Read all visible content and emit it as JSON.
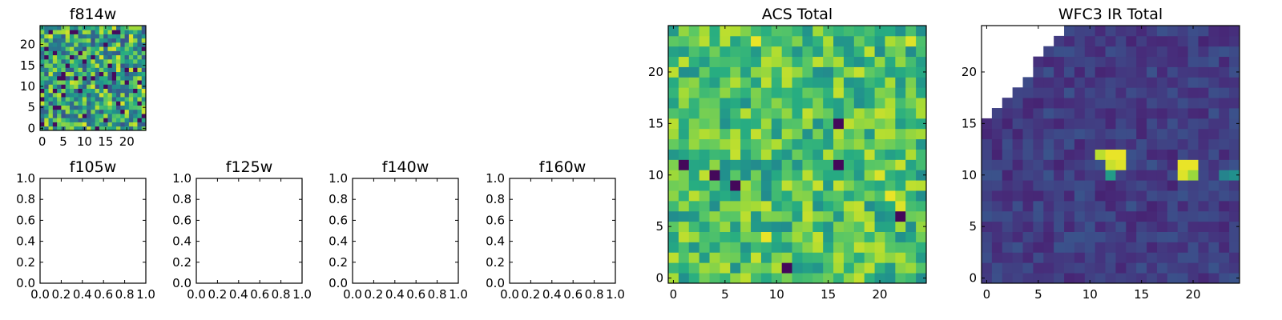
{
  "chart_data": [
    {
      "type": "heatmap",
      "title": "f814w",
      "grid": [
        25,
        25
      ],
      "xlim": [
        -0.5,
        24.5
      ],
      "ylim": [
        -0.5,
        24.5
      ],
      "xticks": [
        0,
        5,
        10,
        15,
        20
      ],
      "yticks": [
        0,
        5,
        10,
        15,
        20
      ],
      "colormap": "viridis",
      "seed": 814,
      "missing_top_left": false,
      "hot_spots": [
        {
          "x": 24,
          "y": 9,
          "value": 0.95
        },
        {
          "x": 23,
          "y": 10,
          "value": 0.95
        }
      ]
    },
    {
      "type": "empty",
      "title": "f105w",
      "xlim": [
        0,
        1
      ],
      "ylim": [
        0,
        1
      ],
      "xticks": [
        "0.0",
        "0.2",
        "0.4",
        "0.6",
        "0.8",
        "1.0"
      ],
      "yticks": [
        "0.0",
        "0.2",
        "0.4",
        "0.6",
        "0.8",
        "1.0"
      ]
    },
    {
      "type": "empty",
      "title": "f125w",
      "xlim": [
        0,
        1
      ],
      "ylim": [
        0,
        1
      ],
      "xticks": [
        "0.0",
        "0.2",
        "0.4",
        "0.6",
        "0.8",
        "1.0"
      ],
      "yticks": [
        "0.0",
        "0.2",
        "0.4",
        "0.6",
        "0.8",
        "1.0"
      ]
    },
    {
      "type": "empty",
      "title": "f140w",
      "xlim": [
        0,
        1
      ],
      "ylim": [
        0,
        1
      ],
      "xticks": [
        "0.0",
        "0.2",
        "0.4",
        "0.6",
        "0.8",
        "1.0"
      ],
      "yticks": [
        "0.0",
        "0.2",
        "0.4",
        "0.6",
        "0.8",
        "1.0"
      ]
    },
    {
      "type": "empty",
      "title": "f160w",
      "xlim": [
        0,
        1
      ],
      "ylim": [
        0,
        1
      ],
      "xticks": [
        "0.0",
        "0.2",
        "0.4",
        "0.6",
        "0.8",
        "1.0"
      ],
      "yticks": [
        "0.0",
        "0.2",
        "0.4",
        "0.6",
        "0.8",
        "1.0"
      ]
    },
    {
      "type": "heatmap",
      "title": "ACS Total",
      "grid": [
        25,
        25
      ],
      "xlim": [
        -0.5,
        24.5
      ],
      "ylim": [
        -0.5,
        24.5
      ],
      "xticks": [
        0,
        5,
        10,
        15,
        20
      ],
      "yticks": [
        0,
        5,
        10,
        15,
        20
      ],
      "colormap": "viridis",
      "seed": 4242,
      "missing_top_left": false,
      "hot_spots": [
        {
          "x": 8,
          "y": 23,
          "value": 0.97
        },
        {
          "x": 23,
          "y": 23,
          "value": 0.95
        },
        {
          "x": 20,
          "y": 10,
          "value": 0.95
        },
        {
          "x": 21,
          "y": 8,
          "value": 0.97
        },
        {
          "x": 22,
          "y": 7,
          "value": 0.95
        },
        {
          "x": 9,
          "y": 4,
          "value": 0.97
        },
        {
          "x": 16,
          "y": 15,
          "value": 0.02
        },
        {
          "x": 1,
          "y": 11,
          "value": 0.02
        },
        {
          "x": 4,
          "y": 10,
          "value": 0.02
        },
        {
          "x": 6,
          "y": 9,
          "value": 0.02
        },
        {
          "x": 16,
          "y": 11,
          "value": 0.02
        },
        {
          "x": 22,
          "y": 6,
          "value": 0.02
        },
        {
          "x": 11,
          "y": 1,
          "value": 0.02
        }
      ]
    },
    {
      "type": "heatmap",
      "title": "WFC3 IR Total",
      "grid": [
        25,
        25
      ],
      "xlim": [
        -0.5,
        24.5
      ],
      "ylim": [
        -0.5,
        24.5
      ],
      "xticks": [
        0,
        5,
        10,
        15,
        20
      ],
      "yticks": [
        0,
        5,
        10,
        15,
        20
      ],
      "colormap": "viridis",
      "seed": 3160,
      "missing_top_left": true,
      "hot_spots": [
        {
          "x": 12,
          "y": 12,
          "value": 0.97
        },
        {
          "x": 13,
          "y": 12,
          "value": 0.97
        },
        {
          "x": 12,
          "y": 11,
          "value": 0.92
        },
        {
          "x": 11,
          "y": 12,
          "value": 0.9
        },
        {
          "x": 13,
          "y": 11,
          "value": 0.95
        },
        {
          "x": 12,
          "y": 10,
          "value": 0.55
        },
        {
          "x": 19,
          "y": 11,
          "value": 0.97
        },
        {
          "x": 20,
          "y": 11,
          "value": 0.97
        },
        {
          "x": 19,
          "y": 10,
          "value": 0.95
        },
        {
          "x": 20,
          "y": 10,
          "value": 0.85
        },
        {
          "x": 24,
          "y": 10,
          "value": 0.5
        },
        {
          "x": 23,
          "y": 10,
          "value": 0.45
        }
      ]
    }
  ]
}
